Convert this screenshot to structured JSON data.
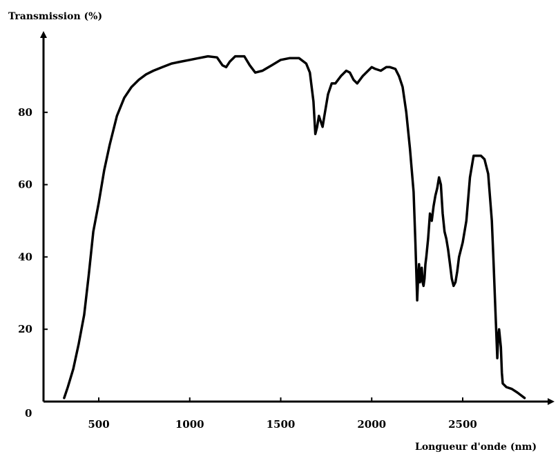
{
  "chart_data": {
    "type": "line",
    "ylabel": "Transmission (%)",
    "xlabel": "Longueur d'onde (nm)",
    "origin_label": "0",
    "xlim": [
      200,
      2900
    ],
    "ylim": [
      0,
      100
    ],
    "x_ticks": [
      500,
      1000,
      1500,
      2000,
      2500
    ],
    "y_ticks": [
      20,
      40,
      60,
      80
    ],
    "grid": false,
    "series": [
      {
        "x": [
          310,
          330,
          360,
          390,
          420,
          445,
          470,
          500,
          530,
          560,
          600,
          640,
          680,
          720,
          760,
          800,
          850,
          900,
          950,
          1000,
          1050,
          1100,
          1150,
          1180,
          1200,
          1220,
          1250,
          1300,
          1330,
          1360,
          1400,
          1450,
          1500,
          1550,
          1600,
          1640,
          1660,
          1680,
          1690,
          1700,
          1710,
          1730,
          1740,
          1760,
          1780,
          1800,
          1830,
          1860,
          1880,
          1900,
          1920,
          1950,
          2000,
          2020,
          2050,
          2080,
          2100,
          2130,
          2150,
          2170,
          2190,
          2210,
          2230,
          2240,
          2250,
          2255,
          2260,
          2265,
          2270,
          2275,
          2280,
          2285,
          2290,
          2295,
          2300,
          2310,
          2320,
          2330,
          2340,
          2350,
          2360,
          2370,
          2380,
          2390,
          2400,
          2410,
          2420,
          2430,
          2440,
          2450,
          2460,
          2470,
          2480,
          2500,
          2520,
          2540,
          2560,
          2580,
          2600,
          2620,
          2640,
          2660,
          2670,
          2680,
          2690,
          2695,
          2700,
          2710,
          2715,
          2720,
          2730,
          2740,
          2770,
          2800,
          2840
        ],
        "y": [
          1,
          4,
          9,
          16,
          24,
          35,
          47,
          55,
          64,
          71,
          79,
          84,
          87,
          89,
          90.5,
          91.5,
          92.5,
          93.5,
          94,
          94.5,
          95,
          95.5,
          95.2,
          93,
          92.5,
          94,
          95.5,
          95.5,
          93,
          91,
          91.5,
          93,
          94.5,
          95,
          95,
          93.5,
          91,
          83,
          74,
          76,
          79,
          76,
          79,
          85,
          88,
          88,
          90,
          91.5,
          91,
          89,
          88,
          90,
          92.5,
          92,
          91.5,
          92.5,
          92.5,
          92,
          90,
          87,
          80,
          70,
          58,
          44,
          28,
          34,
          38,
          33,
          34,
          37,
          33,
          32,
          34,
          38,
          40,
          45,
          52,
          50,
          54,
          57,
          59,
          62,
          60,
          52,
          47,
          45,
          42,
          38,
          34,
          32,
          33,
          36,
          40,
          44,
          50,
          62,
          68,
          68,
          68,
          67,
          63,
          50,
          38,
          25,
          12,
          18,
          20,
          15,
          8,
          5,
          4.5,
          4,
          3.5,
          2.5,
          1
        ]
      }
    ]
  }
}
